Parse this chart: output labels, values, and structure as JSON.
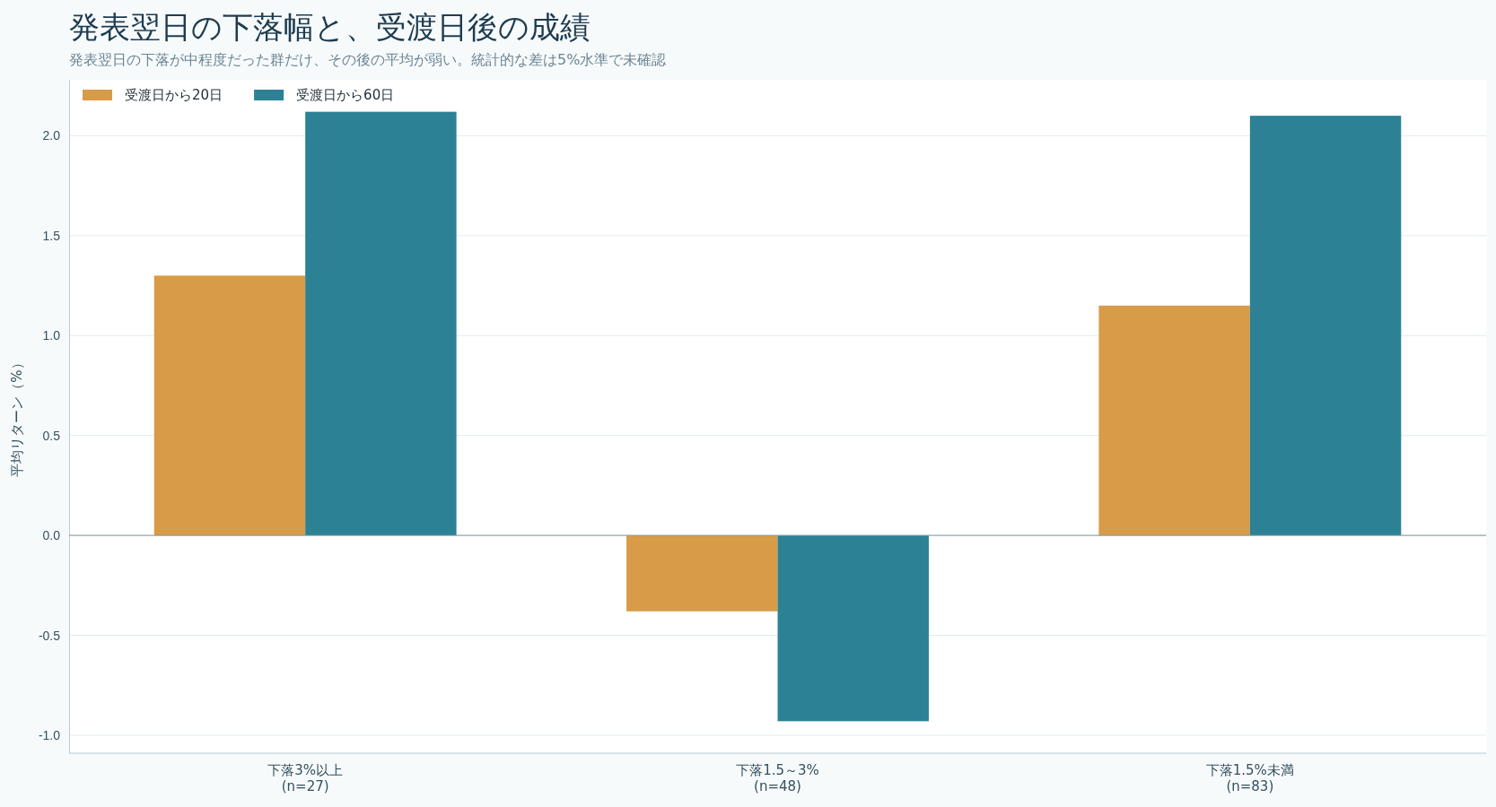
{
  "chart_data": {
    "type": "bar",
    "title": "発表翌日の下落幅と、受渡日後の成績",
    "subtitle": "発表翌日の下落が中程度だった群だけ、その後の平均が弱い。統計的な差は5%水準で未確認",
    "ylabel": "平均リターン（%）",
    "categories": [
      "下落3%以上\n(n=27)",
      "下落1.5～3%\n(n=48)",
      "下落1.5%未満\n(n=83)"
    ],
    "series": [
      {
        "name": "受渡日から20日",
        "color": "#d89b48",
        "values": [
          1.3,
          -0.38,
          1.15
        ]
      },
      {
        "name": "受渡日から60日",
        "color": "#2c8195",
        "values": [
          2.12,
          -0.93,
          2.1
        ]
      }
    ],
    "ylim": [
      -1.09,
      2.28
    ],
    "yticks": [
      {
        "value": -1,
        "label": "-1.0"
      },
      {
        "value": -0.5,
        "label": "-0.5"
      },
      {
        "value": 0,
        "label": "0.0"
      },
      {
        "value": 0.5,
        "label": "0.5"
      },
      {
        "value": 1,
        "label": "1.0"
      },
      {
        "value": 1.5,
        "label": "1.5"
      },
      {
        "value": 2,
        "label": "2.0"
      }
    ],
    "grid": "y",
    "legend": "top left"
  }
}
